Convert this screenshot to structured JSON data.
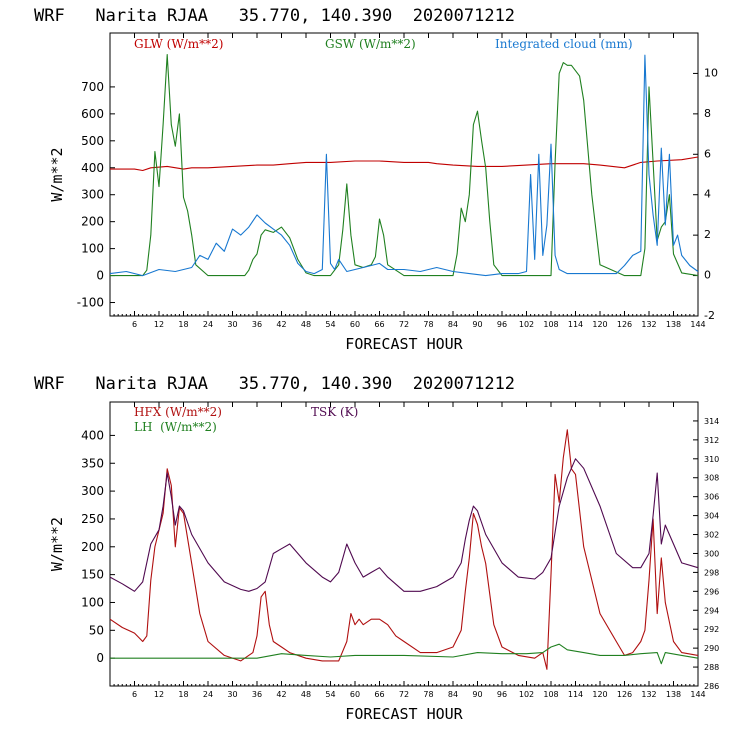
{
  "chart_data": [
    {
      "type": "line",
      "title": "WRF   Narita RJAA   35.770, 140.390  2020071212",
      "xlabel": "FORECAST HOUR",
      "ylabel": "W/m**2",
      "xlim": [
        0,
        144
      ],
      "ylim": [
        -150,
        900
      ],
      "y2lim": [
        -2,
        12
      ],
      "xticks": [
        "6",
        "12",
        "18",
        "24",
        "30",
        "36",
        "42",
        "48",
        "54",
        "60",
        "66",
        "72",
        "78",
        "84",
        "90",
        "96",
        "102",
        "108",
        "114",
        "120",
        "126",
        "132",
        "138",
        "144"
      ],
      "yticks": [
        "-100",
        "0",
        "100",
        "200",
        "300",
        "400",
        "500",
        "600",
        "700"
      ],
      "y2ticks": [
        "-2",
        "0",
        "2",
        "4",
        "6",
        "8",
        "10"
      ],
      "series": [
        {
          "name": "GLW (W/m**2)",
          "color": "#c00000",
          "axis": "left",
          "x": [
            0,
            6,
            8,
            10,
            14,
            18,
            20,
            24,
            30,
            36,
            40,
            44,
            48,
            54,
            60,
            66,
            72,
            78,
            80,
            84,
            90,
            96,
            102,
            108,
            112,
            116,
            120,
            126,
            130,
            134,
            140,
            144
          ],
          "y": [
            395,
            395,
            390,
            400,
            405,
            395,
            400,
            400,
            405,
            410,
            410,
            415,
            420,
            420,
            425,
            425,
            420,
            420,
            415,
            410,
            405,
            405,
            410,
            415,
            415,
            415,
            410,
            400,
            420,
            425,
            430,
            440
          ]
        },
        {
          "name": "GSW (W/m**2)",
          "color": "#208020",
          "axis": "left",
          "x": [
            0,
            8,
            9,
            10,
            11,
            12,
            13,
            14,
            15,
            16,
            17,
            18,
            19,
            20,
            21,
            24,
            30,
            33,
            34,
            35,
            36,
            37,
            38,
            40,
            42,
            44,
            46,
            48,
            50,
            54,
            56,
            57,
            58,
            59,
            60,
            62,
            64,
            65,
            66,
            67,
            68,
            72,
            78,
            84,
            85,
            86,
            87,
            88,
            89,
            90,
            91,
            92,
            93,
            94,
            96,
            102,
            108,
            109,
            110,
            111,
            112,
            113,
            114,
            115,
            116,
            118,
            120,
            126,
            130,
            131,
            132,
            133,
            134,
            135,
            136,
            137,
            138,
            140,
            144
          ],
          "y": [
            0,
            0,
            20,
            150,
            460,
            330,
            560,
            820,
            560,
            480,
            600,
            290,
            240,
            150,
            40,
            0,
            0,
            0,
            20,
            60,
            80,
            150,
            170,
            160,
            180,
            140,
            60,
            10,
            0,
            0,
            40,
            170,
            340,
            150,
            40,
            30,
            40,
            70,
            210,
            150,
            40,
            0,
            0,
            0,
            80,
            250,
            200,
            300,
            560,
            610,
            500,
            400,
            200,
            40,
            0,
            0,
            0,
            420,
            750,
            790,
            780,
            780,
            760,
            740,
            650,
            300,
            40,
            0,
            0,
            100,
            700,
            420,
            130,
            180,
            200,
            300,
            80,
            10,
            0
          ]
        },
        {
          "name": "Integrated cloud (mm)",
          "color": "#1878d0",
          "axis": "right",
          "x": [
            0,
            4,
            8,
            12,
            16,
            20,
            22,
            24,
            26,
            28,
            30,
            32,
            34,
            36,
            38,
            40,
            42,
            44,
            46,
            48,
            50,
            52,
            53,
            54,
            55,
            56,
            58,
            60,
            62,
            64,
            66,
            68,
            72,
            76,
            80,
            84,
            88,
            92,
            96,
            100,
            102,
            103,
            104,
            105,
            106,
            107,
            108,
            109,
            110,
            112,
            116,
            120,
            124,
            126,
            128,
            130,
            131,
            132,
            133,
            134,
            135,
            136,
            137,
            138,
            139,
            140,
            142,
            144
          ],
          "y": [
            0.1,
            0.2,
            0.0,
            0.3,
            0.2,
            0.4,
            1.0,
            0.8,
            1.6,
            1.2,
            2.3,
            2.0,
            2.4,
            3.0,
            2.6,
            2.3,
            2.0,
            1.5,
            0.6,
            0.2,
            0.1,
            0.3,
            6.0,
            0.6,
            0.3,
            0.8,
            0.2,
            0.3,
            0.4,
            0.5,
            0.6,
            0.3,
            0.3,
            0.2,
            0.4,
            0.2,
            0.1,
            0.0,
            0.1,
            0.1,
            0.2,
            5.0,
            0.8,
            6.0,
            1.0,
            2.5,
            6.5,
            1.0,
            0.3,
            0.1,
            0.1,
            0.1,
            0.1,
            0.5,
            1.0,
            1.2,
            10.9,
            5.0,
            3.0,
            1.5,
            6.3,
            2.5,
            6.0,
            1.5,
            2.0,
            1.0,
            0.5,
            0.2
          ]
        }
      ]
    },
    {
      "type": "line",
      "title": "WRF   Narita RJAA   35.770, 140.390  2020071212",
      "xlabel": "FORECAST HOUR",
      "ylabel": "W/m**2",
      "xlim": [
        0,
        144
      ],
      "ylim": [
        -50,
        460
      ],
      "y2lim": [
        286,
        316
      ],
      "xticks": [
        "6",
        "12",
        "18",
        "24",
        "30",
        "36",
        "42",
        "48",
        "54",
        "60",
        "66",
        "72",
        "78",
        "84",
        "90",
        "96",
        "102",
        "108",
        "114",
        "120",
        "126",
        "132",
        "138",
        "144"
      ],
      "yticks": [
        "0",
        "50",
        "100",
        "150",
        "200",
        "250",
        "300",
        "350",
        "400"
      ],
      "y2ticks": [
        "286",
        "288",
        "290",
        "292",
        "294",
        "296",
        "298",
        "300",
        "302",
        "304",
        "306",
        "308",
        "310",
        "312",
        "314"
      ],
      "series": [
        {
          "name": "HFX (W/m**2)",
          "color": "#b01010",
          "axis": "left",
          "x": [
            0,
            3,
            6,
            8,
            9,
            10,
            11,
            12,
            13,
            14,
            15,
            16,
            17,
            18,
            20,
            22,
            24,
            28,
            32,
            35,
            36,
            37,
            38,
            39,
            40,
            42,
            44,
            48,
            52,
            56,
            58,
            59,
            60,
            61,
            62,
            64,
            66,
            68,
            70,
            72,
            76,
            80,
            84,
            86,
            87,
            88,
            89,
            90,
            91,
            92,
            94,
            96,
            100,
            104,
            106,
            107,
            108,
            109,
            110,
            111,
            112,
            113,
            114,
            116,
            120,
            124,
            126,
            128,
            130,
            131,
            132,
            133,
            134,
            135,
            136,
            138,
            140,
            144
          ],
          "y": [
            70,
            55,
            45,
            30,
            40,
            140,
            200,
            230,
            260,
            340,
            310,
            200,
            270,
            260,
            170,
            80,
            30,
            5,
            -5,
            10,
            40,
            110,
            120,
            60,
            30,
            20,
            10,
            0,
            -5,
            -5,
            30,
            80,
            60,
            70,
            60,
            70,
            70,
            60,
            40,
            30,
            10,
            10,
            20,
            50,
            120,
            180,
            260,
            240,
            200,
            170,
            60,
            20,
            5,
            0,
            10,
            -20,
            150,
            330,
            280,
            360,
            410,
            340,
            330,
            200,
            80,
            30,
            5,
            10,
            30,
            50,
            140,
            250,
            80,
            180,
            100,
            30,
            10,
            5
          ]
        },
        {
          "name": "LH  (W/m**2)",
          "color": "#208020",
          "axis": "left",
          "x": [
            0,
            12,
            24,
            36,
            42,
            48,
            54,
            60,
            72,
            84,
            90,
            96,
            102,
            106,
            108,
            110,
            112,
            116,
            120,
            126,
            130,
            134,
            135,
            136,
            140,
            144
          ],
          "y": [
            0,
            0,
            0,
            0,
            8,
            5,
            2,
            5,
            5,
            2,
            10,
            8,
            8,
            10,
            20,
            25,
            15,
            10,
            5,
            5,
            8,
            10,
            -10,
            10,
            5,
            0
          ]
        },
        {
          "name": "TSK (K)",
          "color": "#500a50",
          "axis": "right",
          "x": [
            0,
            3,
            6,
            8,
            10,
            12,
            13,
            14,
            15,
            16,
            17,
            18,
            20,
            24,
            28,
            32,
            34,
            36,
            38,
            40,
            42,
            44,
            48,
            52,
            54,
            56,
            57,
            58,
            60,
            62,
            64,
            66,
            68,
            72,
            76,
            80,
            84,
            86,
            87,
            88,
            89,
            90,
            92,
            96,
            100,
            104,
            106,
            108,
            110,
            112,
            114,
            116,
            120,
            124,
            128,
            130,
            132,
            133,
            134,
            135,
            136,
            138,
            140,
            144
          ],
          "y": [
            297.5,
            296.8,
            296.0,
            297.0,
            301.0,
            302.5,
            305.0,
            308.5,
            306.0,
            303.0,
            305.0,
            304.5,
            302.0,
            299.0,
            297.0,
            296.2,
            296.0,
            296.3,
            297.0,
            300.0,
            300.5,
            301.0,
            299.0,
            297.5,
            297.0,
            298.0,
            299.5,
            301.0,
            299.0,
            297.5,
            298.0,
            298.5,
            297.5,
            296.0,
            296.0,
            296.5,
            297.5,
            299.0,
            301.5,
            303.5,
            305.0,
            304.5,
            302.0,
            299.0,
            297.5,
            297.3,
            298.0,
            299.5,
            305.0,
            308.0,
            310.0,
            309.0,
            305.0,
            300.0,
            298.5,
            298.5,
            300.0,
            304.0,
            308.5,
            301.0,
            303.0,
            301.0,
            299.0,
            298.5
          ]
        }
      ]
    }
  ]
}
